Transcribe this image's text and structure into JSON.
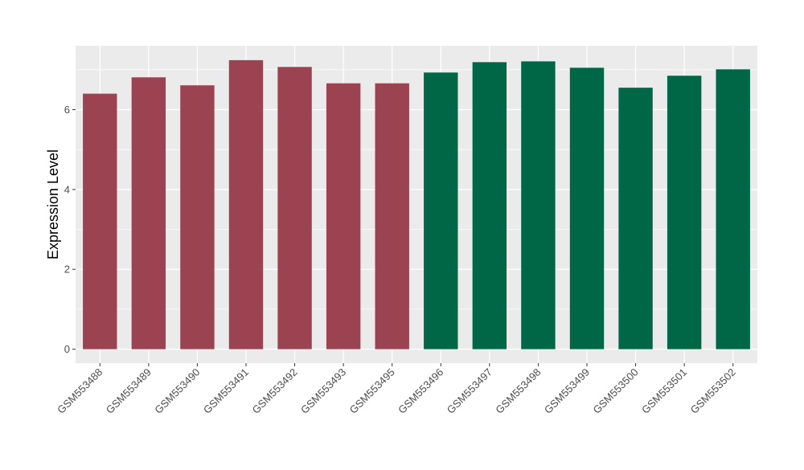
{
  "chart_data": {
    "type": "bar",
    "title": "",
    "xlabel": "",
    "ylabel": "Expression Level",
    "ylim": [
      -0.35,
      7.6
    ],
    "yticks": [
      0,
      2,
      4,
      6
    ],
    "ytick_labels": [
      "0",
      "2",
      "4",
      "6"
    ],
    "grid": true,
    "legend": "none",
    "background_color": "#ebebeb",
    "grid_color": "#ffffff",
    "categories": [
      "GSM553488",
      "GSM553489",
      "GSM553490",
      "GSM553491",
      "GSM553492",
      "GSM553493",
      "GSM553495",
      "GSM553496",
      "GSM553497",
      "GSM553498",
      "GSM553499",
      "GSM553500",
      "GSM553501",
      "GSM553502"
    ],
    "values": [
      6.4,
      6.81,
      6.61,
      7.24,
      7.07,
      6.66,
      6.66,
      6.93,
      7.19,
      7.21,
      7.05,
      6.55,
      6.85,
      7.01
    ],
    "colors": [
      "#9b4350",
      "#9b4350",
      "#9b4350",
      "#9b4350",
      "#9b4350",
      "#9b4350",
      "#9b4350",
      "#006746",
      "#006746",
      "#006746",
      "#006746",
      "#006746",
      "#006746",
      "#006746"
    ]
  }
}
